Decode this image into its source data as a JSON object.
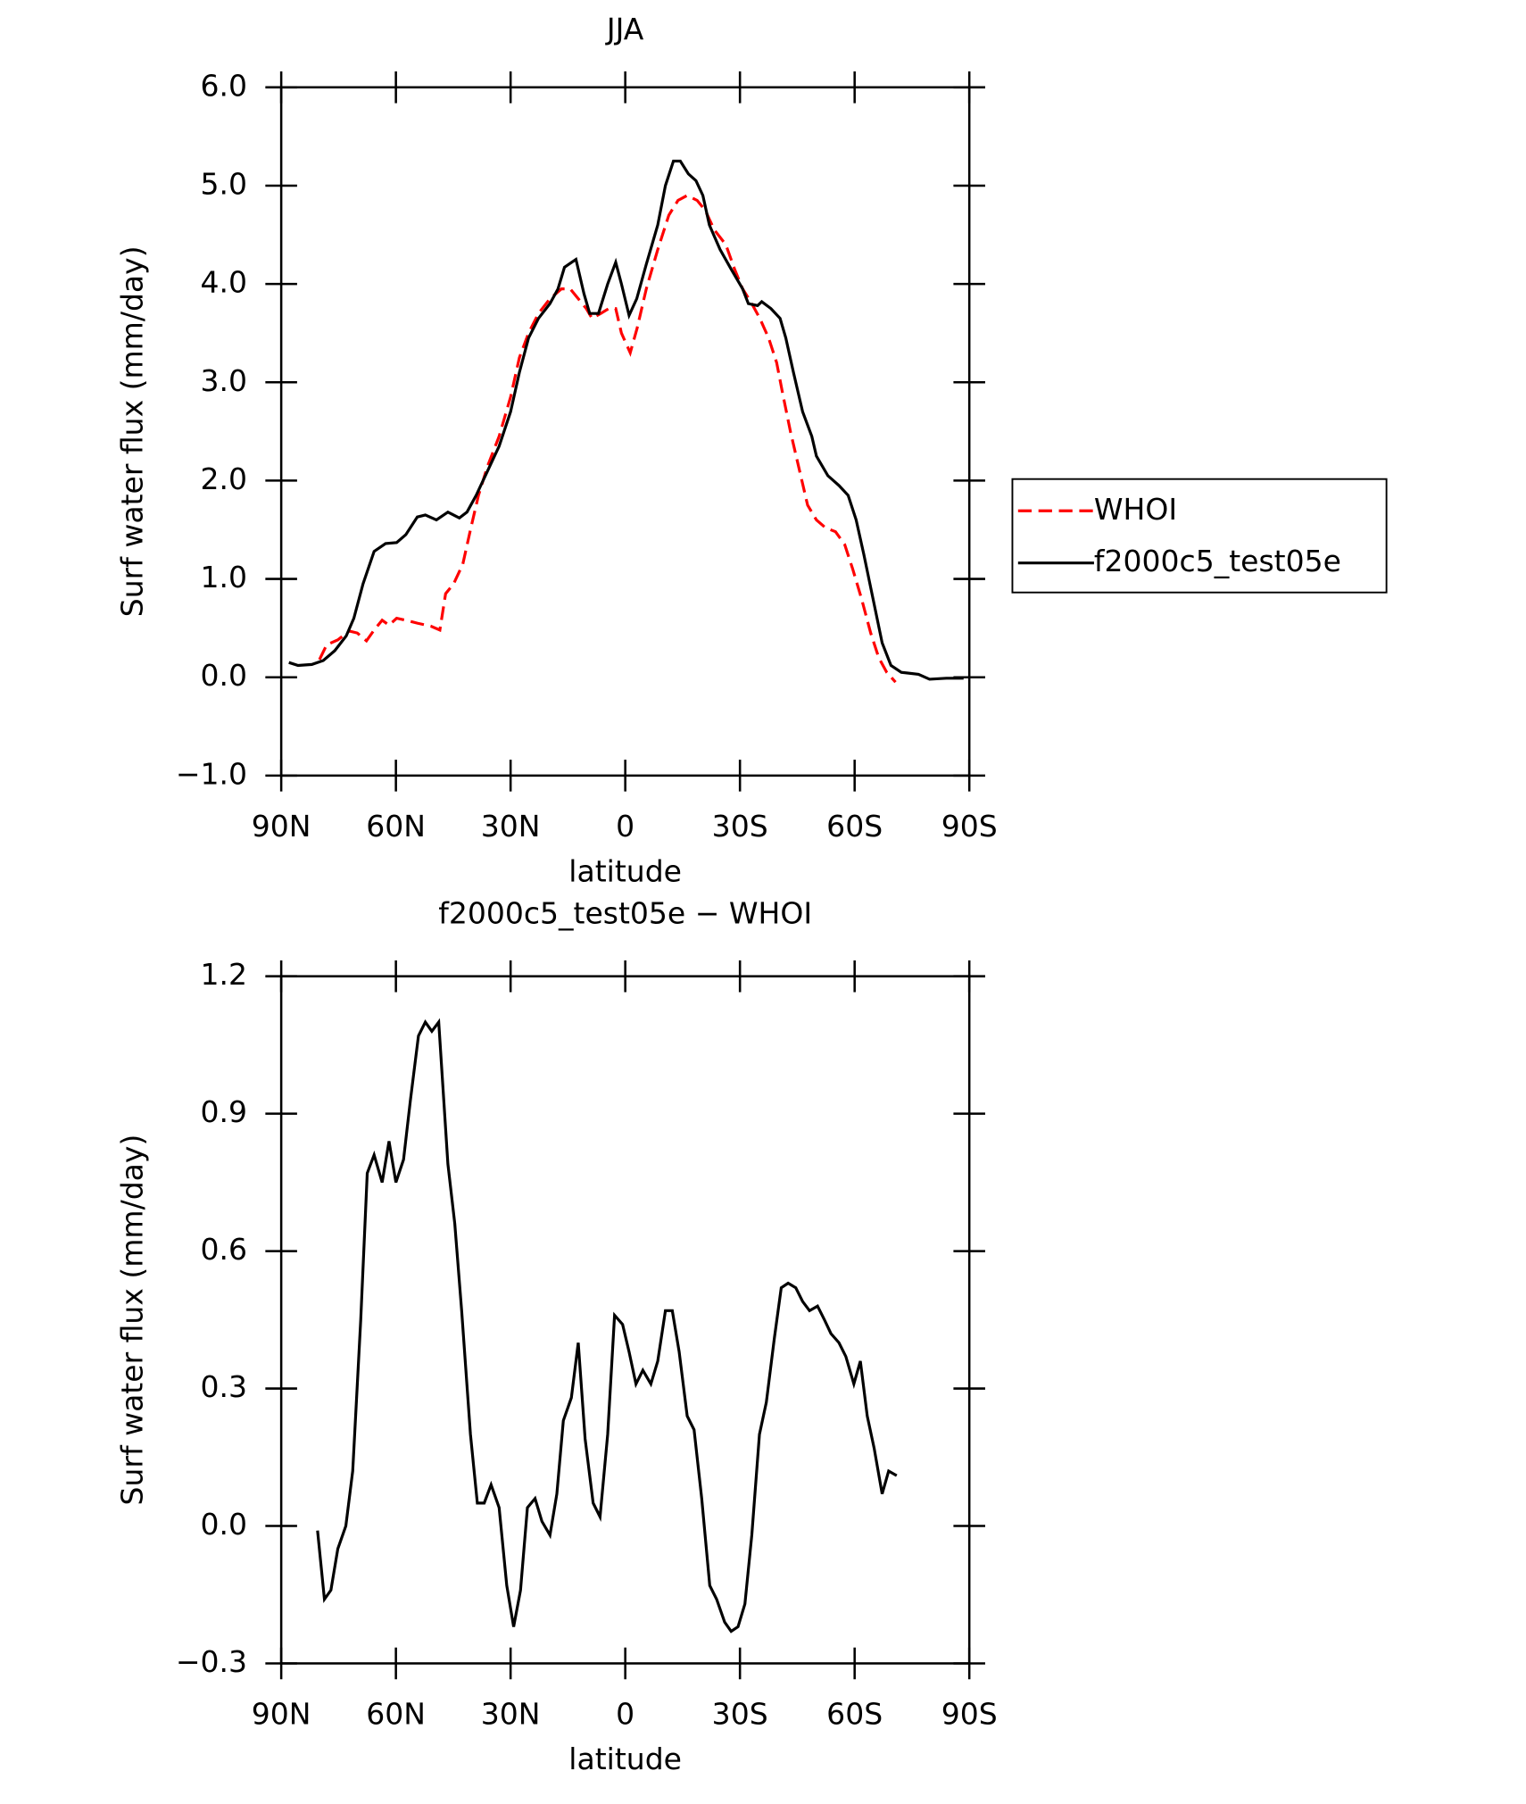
{
  "chart_data": [
    {
      "type": "line",
      "title": "JJA",
      "xlabel": "latitude",
      "ylabel": "Surf water flux (mm/day)",
      "xlim": [
        90,
        -90
      ],
      "xticks": [
        {
          "value": 90,
          "label": "90N"
        },
        {
          "value": 60,
          "label": "60N"
        },
        {
          "value": 30,
          "label": "30N"
        },
        0,
        {
          "value": -30,
          "label": "30S"
        },
        {
          "value": -60,
          "label": "60S"
        },
        {
          "value": -90,
          "label": "90S"
        }
      ],
      "ylim": [
        -1,
        6
      ],
      "yticks": [
        {
          "value": -1,
          "label": "−1.0"
        },
        {
          "value": 0,
          "label": "0.0"
        },
        {
          "value": 1,
          "label": "1.0"
        },
        {
          "value": 2,
          "label": "2.0"
        },
        {
          "value": 3,
          "label": "3.0"
        },
        {
          "value": 4,
          "label": "4.0"
        },
        {
          "value": 5,
          "label": "5.0"
        },
        {
          "value": 6,
          "label": "6.0"
        }
      ],
      "legend": "right",
      "series": [
        {
          "name": "WHOI",
          "color": "#ff0000",
          "dash": "dashed",
          "x": [
            80,
            78.1,
            75.2,
            72.2,
            70.1,
            67.7,
            65.7,
            63.6,
            61.8,
            59.8,
            57.4,
            54.4,
            50.9,
            48.5,
            47,
            44.9,
            42.5,
            40.5,
            38.4,
            36,
            33,
            30,
            27.7,
            25.3,
            22.7,
            19.7,
            16.7,
            14.4,
            12.3,
            10.2,
            8.7,
            6.4,
            4.3,
            2.5,
            1,
            -1.3,
            -3.1,
            -5.5,
            -8.5,
            -11.4,
            -13.8,
            -16.2,
            -18.8,
            -20.9,
            -23.3,
            -26.3,
            -28.6,
            -30.7,
            -33.1,
            -35.2,
            -37.5,
            -39.6,
            -41.1,
            -43.2,
            -45.6,
            -47.7,
            -50,
            -52.4,
            -55,
            -57.4,
            -59.5,
            -61.8,
            -64.2,
            -66.3,
            -68.4,
            -70.7
          ],
          "values": [
            0.18,
            0.33,
            0.38,
            0.47,
            0.45,
            0.37,
            0.48,
            0.58,
            0.53,
            0.6,
            0.58,
            0.55,
            0.52,
            0.48,
            0.85,
            0.95,
            1.15,
            1.5,
            1.85,
            2.15,
            2.45,
            2.85,
            3.25,
            3.5,
            3.7,
            3.85,
            3.95,
            3.95,
            3.85,
            3.75,
            3.65,
            3.7,
            3.75,
            3.75,
            3.5,
            3.3,
            3.55,
            3.95,
            4.35,
            4.7,
            4.85,
            4.9,
            4.85,
            4.75,
            4.55,
            4.4,
            4.15,
            3.95,
            3.8,
            3.65,
            3.45,
            3.2,
            2.9,
            2.5,
            2.1,
            1.75,
            1.6,
            1.52,
            1.48,
            1.35,
            1.1,
            0.8,
            0.45,
            0.2,
            0.05,
            -0.05
          ]
        },
        {
          "name": "f2000c5_test05e",
          "color": "#000000",
          "dash": "solid",
          "x": [
            88,
            85.6,
            82,
            79,
            76,
            73,
            71,
            68.6,
            65.7,
            62.7,
            59.8,
            57.4,
            54.4,
            52.3,
            49.4,
            46.4,
            43.4,
            41.4,
            39,
            36,
            33,
            30,
            27.7,
            25.3,
            22.7,
            19.7,
            17.6,
            15.9,
            12.9,
            10.8,
            9.3,
            7,
            4.6,
            2.5,
            1,
            -1,
            -3,
            -5.5,
            -8.5,
            -10.5,
            -12.6,
            -14.4,
            -16.5,
            -18.5,
            -20.3,
            -22,
            -24.8,
            -27.7,
            -30.7,
            -32.2,
            -34.6,
            -35.7,
            -38.1,
            -40.5,
            -42,
            -44,
            -46.4,
            -48.8,
            -50,
            -53,
            -55.9,
            -58.3,
            -60.4,
            -62.4,
            -64.8,
            -67.2,
            -69.5,
            -72.2,
            -76.7,
            -79.6,
            -84,
            -88.5
          ],
          "values": [
            0.15,
            0.12,
            0.13,
            0.17,
            0.27,
            0.42,
            0.6,
            0.95,
            1.28,
            1.36,
            1.37,
            1.45,
            1.63,
            1.65,
            1.6,
            1.68,
            1.62,
            1.68,
            1.85,
            2.1,
            2.35,
            2.7,
            3.1,
            3.45,
            3.65,
            3.8,
            3.95,
            4.17,
            4.25,
            3.9,
            3.7,
            3.7,
            4.0,
            4.22,
            4.0,
            3.68,
            3.85,
            4.2,
            4.6,
            5.0,
            5.25,
            5.25,
            5.12,
            5.05,
            4.9,
            4.6,
            4.35,
            4.15,
            3.95,
            3.8,
            3.78,
            3.82,
            3.75,
            3.65,
            3.45,
            3.1,
            2.7,
            2.45,
            2.25,
            2.05,
            1.95,
            1.85,
            1.6,
            1.25,
            0.8,
            0.35,
            0.12,
            0.05,
            0.03,
            -0.02,
            -0.01,
            -0.01
          ]
        }
      ]
    },
    {
      "type": "line",
      "title": "f2000c5_test05e − WHOI",
      "xlabel": "latitude",
      "ylabel": "Surf water flux (mm/day)",
      "xlim": [
        90,
        -90
      ],
      "xticks": [
        {
          "value": 90,
          "label": "90N"
        },
        {
          "value": 60,
          "label": "60N"
        },
        {
          "value": 30,
          "label": "30N"
        },
        0,
        {
          "value": -30,
          "label": "30S"
        },
        {
          "value": -60,
          "label": "60S"
        },
        {
          "value": -90,
          "label": "90S"
        }
      ],
      "ylim": [
        -0.3,
        1.2
      ],
      "yticks": [
        {
          "value": -0.3,
          "label": "−0.3"
        },
        {
          "value": 0,
          "label": "0.0"
        },
        0.3,
        0.6,
        0.9,
        1.2
      ],
      "series": [
        {
          "color": "#000000",
          "dash": "solid",
          "x": [
            80.5,
            78.7,
            77,
            75.2,
            73.1,
            71.3,
            69.2,
            67.5,
            65.7,
            63.6,
            61.8,
            60,
            58,
            56.2,
            54.1,
            52.3,
            50.6,
            48.8,
            46.4,
            44.6,
            42.8,
            40.5,
            38.7,
            36.9,
            35.1,
            33,
            31,
            29.2,
            27.4,
            25.6,
            23.6,
            21.8,
            19.7,
            17.9,
            16.2,
            14.1,
            12.3,
            10.5,
            8.4,
            6.6,
            4.6,
            2.8,
            0.7,
            -1,
            -2.8,
            -4.6,
            -6.7,
            -8.5,
            -10.5,
            -12.3,
            -14.1,
            -16.2,
            -18,
            -20,
            -22.1,
            -23.9,
            -26,
            -27.7,
            -29.5,
            -31.3,
            -33.1,
            -35.1,
            -36.9,
            -39,
            -40.8,
            -42.6,
            -44.6,
            -46.4,
            -48.2,
            -50.3,
            -52.1,
            -53.8,
            -55.9,
            -57.7,
            -59.8,
            -61.5,
            -63.3,
            -65.1,
            -67.2,
            -68.9,
            -71
          ],
          "values": [
            -0.01,
            -0.16,
            -0.14,
            -0.05,
            0.0,
            0.12,
            0.45,
            0.77,
            0.81,
            0.75,
            0.84,
            0.75,
            0.8,
            0.93,
            1.07,
            1.1,
            1.08,
            1.1,
            0.79,
            0.66,
            0.47,
            0.2,
            0.05,
            0.05,
            0.09,
            0.04,
            -0.13,
            -0.22,
            -0.14,
            0.04,
            0.06,
            0.01,
            -0.02,
            0.07,
            0.23,
            0.28,
            0.4,
            0.19,
            0.05,
            0.02,
            0.2,
            0.46,
            0.44,
            0.38,
            0.31,
            0.34,
            0.31,
            0.36,
            0.47,
            0.47,
            0.38,
            0.24,
            0.21,
            0.06,
            -0.13,
            -0.16,
            -0.21,
            -0.23,
            -0.22,
            -0.17,
            -0.02,
            0.2,
            0.27,
            0.41,
            0.52,
            0.53,
            0.52,
            0.49,
            0.47,
            0.48,
            0.45,
            0.42,
            0.4,
            0.37,
            0.31,
            0.36,
            0.24,
            0.17,
            0.07,
            0.12,
            0.11
          ]
        }
      ]
    }
  ]
}
